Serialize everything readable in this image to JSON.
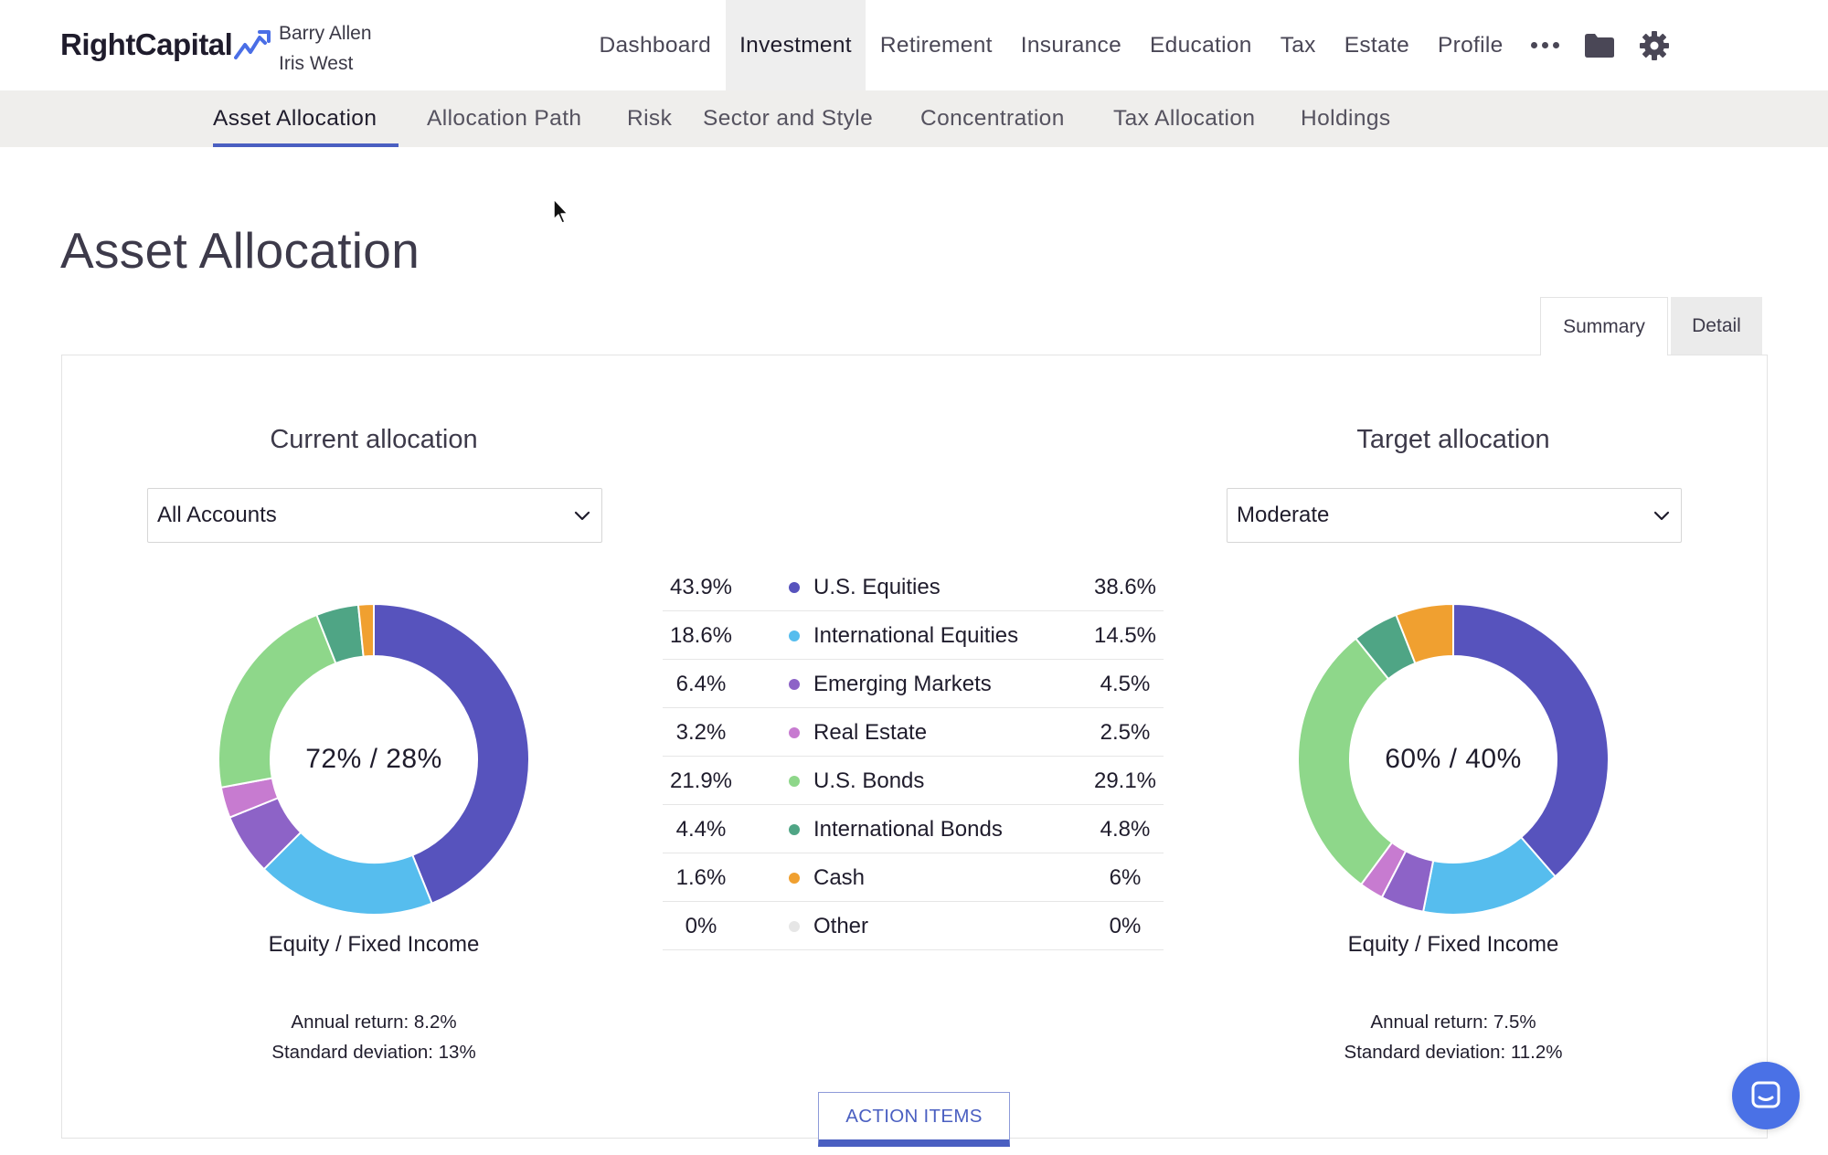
{
  "app": {
    "logo_text": "RightCapital",
    "clients": [
      "Barry Allen",
      "Iris West"
    ]
  },
  "main_nav": {
    "items": [
      "Dashboard",
      "Investment",
      "Retirement",
      "Insurance",
      "Education",
      "Tax",
      "Estate",
      "Profile"
    ],
    "active": "Investment",
    "icons": [
      "more-icon",
      "folder-icon",
      "gear-icon"
    ]
  },
  "sub_nav": {
    "items": [
      "Asset Allocation",
      "Allocation Path",
      "Risk",
      "Sector and Style",
      "Concentration",
      "Tax Allocation",
      "Holdings"
    ],
    "active": "Asset Allocation"
  },
  "page": {
    "title": "Asset Allocation",
    "view_tabs": [
      "Summary",
      "Detail"
    ],
    "active_view": "Summary"
  },
  "current": {
    "title": "Current allocation",
    "select_value": "All Accounts",
    "center_label": "72% / 28%",
    "caption": "Equity / Fixed Income",
    "annual_return": "Annual return: 8.2%",
    "std_dev": "Standard deviation: 13%"
  },
  "target": {
    "title": "Target allocation",
    "select_value": "Moderate",
    "center_label": "60% / 40%",
    "caption": "Equity / Fixed Income",
    "annual_return": "Annual return: 7.5%",
    "std_dev": "Standard deviation: 11.2%"
  },
  "legend": [
    {
      "current": "43.9%",
      "name": "U.S. Equities",
      "target": "38.6%"
    },
    {
      "current": "18.6%",
      "name": "International Equities",
      "target": "14.5%"
    },
    {
      "current": "6.4%",
      "name": "Emerging Markets",
      "target": "4.5%"
    },
    {
      "current": "3.2%",
      "name": "Real Estate",
      "target": "2.5%"
    },
    {
      "current": "21.9%",
      "name": "U.S. Bonds",
      "target": "29.1%"
    },
    {
      "current": "4.4%",
      "name": "International Bonds",
      "target": "4.8%"
    },
    {
      "current": "1.6%",
      "name": "Cash",
      "target": "6%"
    },
    {
      "current": "0%",
      "name": "Other",
      "target": "0%"
    }
  ],
  "chart_data": [
    {
      "type": "pie",
      "categories": [
        "U.S. Equities",
        "International Equities",
        "Emerging Markets",
        "Real Estate",
        "U.S. Bonds",
        "International Bonds",
        "Cash",
        "Other"
      ],
      "values": [
        43.9,
        18.6,
        6.4,
        3.2,
        21.9,
        4.4,
        1.6,
        0
      ],
      "colors": [
        "#5753bd",
        "#56bdee",
        "#8d63c7",
        "#c77bd0",
        "#8ed78a",
        "#4fa585",
        "#f0a030",
        "#e6e6e6"
      ],
      "title": "Current allocation"
    },
    {
      "type": "pie",
      "categories": [
        "U.S. Equities",
        "International Equities",
        "Emerging Markets",
        "Real Estate",
        "U.S. Bonds",
        "International Bonds",
        "Cash",
        "Other"
      ],
      "values": [
        38.6,
        14.5,
        4.5,
        2.5,
        29.1,
        4.8,
        6,
        0
      ],
      "colors": [
        "#5753bd",
        "#56bdee",
        "#8d63c7",
        "#c77bd0",
        "#8ed78a",
        "#4fa585",
        "#f0a030",
        "#e6e6e6"
      ],
      "title": "Target allocation"
    }
  ],
  "action_items_label": "ACTION ITEMS"
}
